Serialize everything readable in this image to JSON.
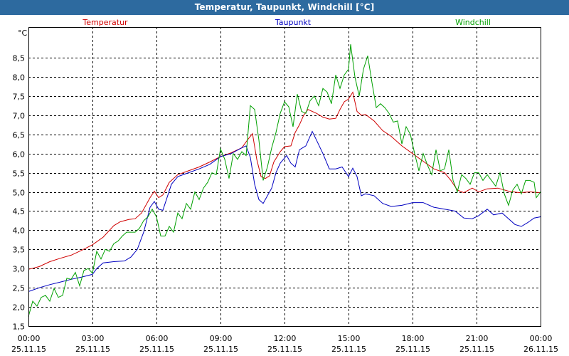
{
  "window": {
    "title": "Temperatur, Taupunkt, Windchill [°C]"
  },
  "chart_data": {
    "type": "line",
    "title": "Temperatur, Taupunkt, Windchill [°C]",
    "ylabel": "°C",
    "xlabel": "",
    "ylim": [
      1.5,
      9.3
    ],
    "xlim": [
      0,
      24
    ],
    "grid": true,
    "legend_placement": "top",
    "y_ticks": [
      {
        "value": 1.5,
        "label": "1,5"
      },
      {
        "value": 2.0,
        "label": "2,0"
      },
      {
        "value": 2.5,
        "label": "2,5"
      },
      {
        "value": 3.0,
        "label": "3,0"
      },
      {
        "value": 3.5,
        "label": "3,5"
      },
      {
        "value": 4.0,
        "label": "4,0"
      },
      {
        "value": 4.5,
        "label": "4,5"
      },
      {
        "value": 5.0,
        "label": "5,0"
      },
      {
        "value": 5.5,
        "label": "5,5"
      },
      {
        "value": 6.0,
        "label": "6,0"
      },
      {
        "value": 6.5,
        "label": "6,5"
      },
      {
        "value": 7.0,
        "label": "7,0"
      },
      {
        "value": 7.5,
        "label": "7,5"
      },
      {
        "value": 8.0,
        "label": "8,0"
      },
      {
        "value": 8.5,
        "label": "8,5"
      }
    ],
    "x_ticks": [
      {
        "value": 0,
        "time": "00:00",
        "date": "25.11.15"
      },
      {
        "value": 3,
        "time": "03:00",
        "date": "25.11.15"
      },
      {
        "value": 6,
        "time": "06:00",
        "date": "25.11.15"
      },
      {
        "value": 9,
        "time": "09:00",
        "date": "25.11.15"
      },
      {
        "value": 12,
        "time": "12:00",
        "date": "25.11.15"
      },
      {
        "value": 15,
        "time": "15:00",
        "date": "25.11.15"
      },
      {
        "value": 18,
        "time": "18:00",
        "date": "25.11.15"
      },
      {
        "value": 21,
        "time": "21:00",
        "date": "25.11.15"
      },
      {
        "value": 24,
        "time": "00:00",
        "date": "26.11.15"
      }
    ],
    "series": [
      {
        "name": "Temperatur",
        "color": "#d00000",
        "points": [
          [
            0,
            2.98
          ],
          [
            0.5,
            3.05
          ],
          [
            1,
            3.18
          ],
          [
            1.5,
            3.27
          ],
          [
            2,
            3.35
          ],
          [
            2.5,
            3.48
          ],
          [
            3,
            3.62
          ],
          [
            3.5,
            3.82
          ],
          [
            4,
            4.12
          ],
          [
            4.3,
            4.22
          ],
          [
            4.7,
            4.28
          ],
          [
            5,
            4.3
          ],
          [
            5.3,
            4.45
          ],
          [
            5.7,
            4.85
          ],
          [
            5.9,
            5.02
          ],
          [
            6.1,
            4.85
          ],
          [
            6.3,
            4.92
          ],
          [
            6.6,
            5.25
          ],
          [
            7,
            5.45
          ],
          [
            7.5,
            5.55
          ],
          [
            8,
            5.65
          ],
          [
            8.5,
            5.78
          ],
          [
            9,
            5.92
          ],
          [
            9.5,
            6.02
          ],
          [
            10,
            6.15
          ],
          [
            10.3,
            6.38
          ],
          [
            10.5,
            6.52
          ],
          [
            10.7,
            5.85
          ],
          [
            10.9,
            5.4
          ],
          [
            11.1,
            5.35
          ],
          [
            11.3,
            5.42
          ],
          [
            11.5,
            5.78
          ],
          [
            11.8,
            6.05
          ],
          [
            12,
            6.18
          ],
          [
            12.3,
            6.2
          ],
          [
            12.5,
            6.55
          ],
          [
            12.7,
            6.75
          ],
          [
            12.9,
            7.0
          ],
          [
            13.1,
            7.15
          ],
          [
            13.5,
            7.05
          ],
          [
            13.8,
            6.95
          ],
          [
            14.1,
            6.9
          ],
          [
            14.4,
            6.92
          ],
          [
            14.6,
            7.15
          ],
          [
            14.8,
            7.35
          ],
          [
            15,
            7.42
          ],
          [
            15.2,
            7.6
          ],
          [
            15.4,
            7.1
          ],
          [
            15.6,
            7.0
          ],
          [
            15.8,
            7.02
          ],
          [
            16.2,
            6.85
          ],
          [
            16.6,
            6.6
          ],
          [
            17,
            6.45
          ],
          [
            17.5,
            6.2
          ],
          [
            18,
            6.0
          ],
          [
            18.5,
            5.8
          ],
          [
            19,
            5.6
          ],
          [
            19.5,
            5.5
          ],
          [
            19.8,
            5.3
          ],
          [
            20.1,
            5.05
          ],
          [
            20.4,
            4.98
          ],
          [
            20.8,
            5.1
          ],
          [
            21.1,
            5.0
          ],
          [
            21.5,
            5.08
          ],
          [
            22,
            5.1
          ],
          [
            22.5,
            5.02
          ],
          [
            23,
            4.98
          ],
          [
            23.5,
            5.0
          ],
          [
            24,
            4.98
          ]
        ]
      },
      {
        "name": "Taupunkt",
        "color": "#0000c0",
        "points": [
          [
            0,
            2.4
          ],
          [
            0.5,
            2.5
          ],
          [
            1,
            2.58
          ],
          [
            1.5,
            2.65
          ],
          [
            2,
            2.72
          ],
          [
            2.5,
            2.78
          ],
          [
            3,
            2.85
          ],
          [
            3.2,
            3.0
          ],
          [
            3.5,
            3.15
          ],
          [
            4,
            3.18
          ],
          [
            4.5,
            3.2
          ],
          [
            4.8,
            3.3
          ],
          [
            5.1,
            3.5
          ],
          [
            5.4,
            3.95
          ],
          [
            5.7,
            4.6
          ],
          [
            5.9,
            4.75
          ],
          [
            6.1,
            4.55
          ],
          [
            6.3,
            4.52
          ],
          [
            6.7,
            5.2
          ],
          [
            7,
            5.4
          ],
          [
            7.5,
            5.5
          ],
          [
            8,
            5.6
          ],
          [
            8.5,
            5.72
          ],
          [
            9,
            5.92
          ],
          [
            9.5,
            6.0
          ],
          [
            10,
            6.15
          ],
          [
            10.2,
            6.2
          ],
          [
            10.4,
            5.9
          ],
          [
            10.6,
            5.2
          ],
          [
            10.8,
            4.8
          ],
          [
            11,
            4.7
          ],
          [
            11.2,
            4.9
          ],
          [
            11.4,
            5.1
          ],
          [
            11.6,
            5.5
          ],
          [
            11.8,
            5.75
          ],
          [
            12.1,
            5.95
          ],
          [
            12.3,
            5.75
          ],
          [
            12.5,
            5.65
          ],
          [
            12.7,
            6.1
          ],
          [
            13,
            6.2
          ],
          [
            13.3,
            6.58
          ],
          [
            13.5,
            6.35
          ],
          [
            13.8,
            6.0
          ],
          [
            14.1,
            5.6
          ],
          [
            14.4,
            5.6
          ],
          [
            14.7,
            5.65
          ],
          [
            15,
            5.4
          ],
          [
            15.2,
            5.62
          ],
          [
            15.4,
            5.4
          ],
          [
            15.6,
            4.9
          ],
          [
            15.8,
            4.95
          ],
          [
            16.2,
            4.9
          ],
          [
            16.6,
            4.7
          ],
          [
            17,
            4.62
          ],
          [
            17.5,
            4.65
          ],
          [
            18,
            4.72
          ],
          [
            18.5,
            4.72
          ],
          [
            19,
            4.6
          ],
          [
            19.5,
            4.55
          ],
          [
            20,
            4.5
          ],
          [
            20.4,
            4.32
          ],
          [
            20.8,
            4.3
          ],
          [
            21.1,
            4.38
          ],
          [
            21.5,
            4.55
          ],
          [
            21.8,
            4.4
          ],
          [
            22.2,
            4.45
          ],
          [
            22.5,
            4.3
          ],
          [
            22.8,
            4.15
          ],
          [
            23.1,
            4.1
          ],
          [
            23.4,
            4.2
          ],
          [
            23.7,
            4.32
          ],
          [
            24,
            4.35
          ]
        ]
      },
      {
        "name": "Windchill",
        "color": "#00a000",
        "points": [
          [
            0,
            1.75
          ],
          [
            0.2,
            2.15
          ],
          [
            0.4,
            2.02
          ],
          [
            0.6,
            2.25
          ],
          [
            0.8,
            2.3
          ],
          [
            1,
            2.15
          ],
          [
            1.2,
            2.48
          ],
          [
            1.4,
            2.25
          ],
          [
            1.6,
            2.3
          ],
          [
            1.8,
            2.75
          ],
          [
            2,
            2.72
          ],
          [
            2.2,
            2.9
          ],
          [
            2.4,
            2.55
          ],
          [
            2.6,
            2.95
          ],
          [
            2.8,
            3.0
          ],
          [
            3.0,
            2.88
          ],
          [
            3.2,
            3.45
          ],
          [
            3.4,
            3.25
          ],
          [
            3.6,
            3.5
          ],
          [
            3.8,
            3.45
          ],
          [
            4.0,
            3.65
          ],
          [
            4.2,
            3.72
          ],
          [
            4.4,
            3.85
          ],
          [
            4.6,
            3.95
          ],
          [
            4.8,
            3.95
          ],
          [
            5.0,
            3.95
          ],
          [
            5.2,
            4.05
          ],
          [
            5.4,
            4.25
          ],
          [
            5.6,
            4.35
          ],
          [
            5.8,
            4.55
          ],
          [
            6.0,
            4.35
          ],
          [
            6.2,
            3.85
          ],
          [
            6.4,
            3.85
          ],
          [
            6.6,
            4.1
          ],
          [
            6.8,
            3.95
          ],
          [
            7.0,
            4.45
          ],
          [
            7.2,
            4.3
          ],
          [
            7.4,
            4.7
          ],
          [
            7.6,
            4.55
          ],
          [
            7.8,
            5.0
          ],
          [
            8.0,
            4.8
          ],
          [
            8.2,
            5.1
          ],
          [
            8.4,
            5.25
          ],
          [
            8.6,
            5.5
          ],
          [
            8.8,
            5.45
          ],
          [
            9.0,
            6.12
          ],
          [
            9.2,
            5.85
          ],
          [
            9.4,
            5.35
          ],
          [
            9.6,
            6.0
          ],
          [
            9.8,
            5.85
          ],
          [
            10.0,
            6.05
          ],
          [
            10.2,
            5.95
          ],
          [
            10.4,
            7.25
          ],
          [
            10.6,
            7.15
          ],
          [
            10.8,
            6.35
          ],
          [
            11.0,
            5.3
          ],
          [
            11.2,
            5.65
          ],
          [
            11.4,
            6.15
          ],
          [
            11.6,
            6.55
          ],
          [
            11.8,
            7.05
          ],
          [
            12.0,
            7.35
          ],
          [
            12.2,
            7.22
          ],
          [
            12.4,
            6.7
          ],
          [
            12.6,
            7.55
          ],
          [
            12.8,
            7.1
          ],
          [
            13.0,
            7.05
          ],
          [
            13.2,
            7.38
          ],
          [
            13.4,
            7.5
          ],
          [
            13.6,
            7.25
          ],
          [
            13.8,
            7.7
          ],
          [
            14.0,
            7.6
          ],
          [
            14.2,
            7.3
          ],
          [
            14.4,
            8.05
          ],
          [
            14.6,
            7.7
          ],
          [
            14.8,
            8.05
          ],
          [
            15.0,
            8.2
          ],
          [
            15.1,
            8.85
          ],
          [
            15.3,
            8.0
          ],
          [
            15.5,
            7.5
          ],
          [
            15.7,
            8.2
          ],
          [
            15.9,
            8.55
          ],
          [
            16.1,
            7.85
          ],
          [
            16.3,
            7.2
          ],
          [
            16.5,
            7.3
          ],
          [
            16.7,
            7.2
          ],
          [
            16.9,
            7.05
          ],
          [
            17.1,
            6.82
          ],
          [
            17.3,
            6.85
          ],
          [
            17.5,
            6.25
          ],
          [
            17.7,
            6.7
          ],
          [
            17.9,
            6.5
          ],
          [
            18.1,
            6.0
          ],
          [
            18.3,
            5.55
          ],
          [
            18.5,
            6.0
          ],
          [
            18.7,
            5.7
          ],
          [
            18.9,
            5.45
          ],
          [
            19.1,
            6.1
          ],
          [
            19.3,
            5.55
          ],
          [
            19.5,
            5.6
          ],
          [
            19.7,
            6.1
          ],
          [
            19.9,
            5.3
          ],
          [
            20.1,
            5.0
          ],
          [
            20.3,
            5.45
          ],
          [
            20.5,
            5.35
          ],
          [
            20.7,
            5.2
          ],
          [
            20.9,
            5.5
          ],
          [
            21.1,
            5.5
          ],
          [
            21.3,
            5.3
          ],
          [
            21.5,
            5.45
          ],
          [
            21.7,
            5.3
          ],
          [
            21.9,
            5.15
          ],
          [
            22.1,
            5.5
          ],
          [
            22.3,
            4.95
          ],
          [
            22.5,
            4.65
          ],
          [
            22.7,
            5.05
          ],
          [
            22.9,
            5.2
          ],
          [
            23.1,
            4.95
          ],
          [
            23.3,
            5.3
          ],
          [
            23.5,
            5.3
          ],
          [
            23.7,
            5.25
          ],
          [
            23.8,
            4.85
          ],
          [
            24,
            5.0
          ]
        ]
      }
    ]
  }
}
